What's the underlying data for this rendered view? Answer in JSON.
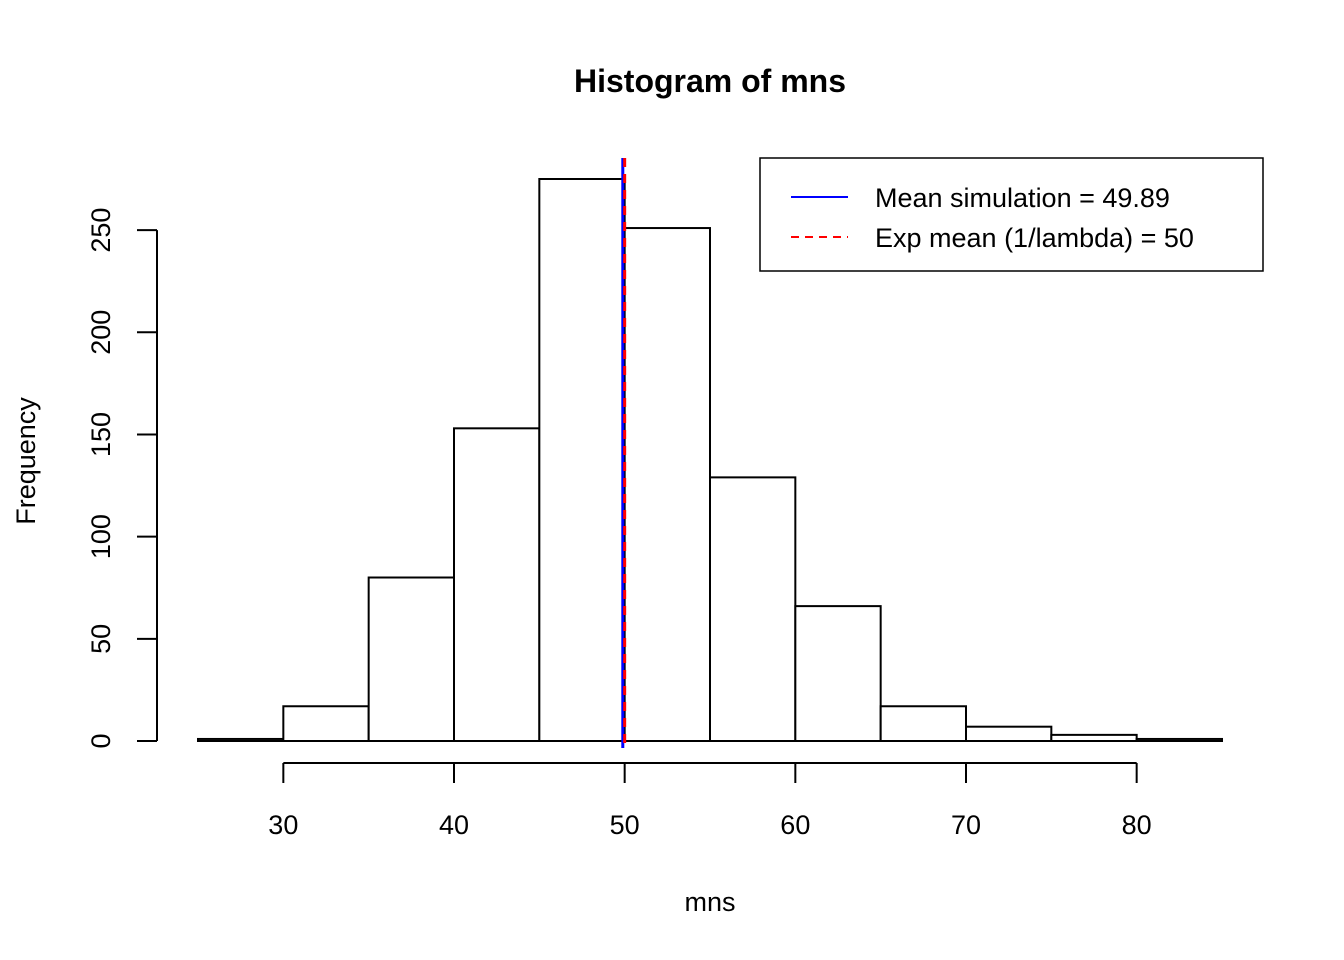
{
  "chart_data": {
    "type": "bar",
    "title": "Histogram of mns",
    "xlabel": "mns",
    "ylabel": "Frequency",
    "bins": [
      {
        "start": 25,
        "end": 30,
        "count": 1
      },
      {
        "start": 30,
        "end": 35,
        "count": 17
      },
      {
        "start": 35,
        "end": 40,
        "count": 80
      },
      {
        "start": 40,
        "end": 45,
        "count": 153
      },
      {
        "start": 45,
        "end": 50,
        "count": 275
      },
      {
        "start": 50,
        "end": 55,
        "count": 251
      },
      {
        "start": 55,
        "end": 60,
        "count": 129
      },
      {
        "start": 60,
        "end": 65,
        "count": 66
      },
      {
        "start": 65,
        "end": 70,
        "count": 17
      },
      {
        "start": 70,
        "end": 75,
        "count": 7
      },
      {
        "start": 75,
        "end": 80,
        "count": 3
      },
      {
        "start": 80,
        "end": 85,
        "count": 1
      }
    ],
    "xlim": [
      25,
      85
    ],
    "ylim": [
      0,
      275
    ],
    "x_ticks": [
      "30",
      "40",
      "50",
      "60",
      "70",
      "80"
    ],
    "y_ticks": [
      "0",
      "50",
      "100",
      "150",
      "200",
      "250"
    ],
    "vlines": [
      {
        "x": 49.89,
        "color": "#0000ff",
        "style": "solid"
      },
      {
        "x": 50,
        "color": "#ff0000",
        "style": "dashed"
      }
    ],
    "legend": {
      "position": "top-right",
      "entries": [
        {
          "label": "Mean simulation = 49.89",
          "color": "#0000ff",
          "style": "solid"
        },
        {
          "label": "Exp mean (1/lambda) = 50",
          "color": "#ff0000",
          "style": "dashed"
        }
      ]
    },
    "grid": false
  }
}
